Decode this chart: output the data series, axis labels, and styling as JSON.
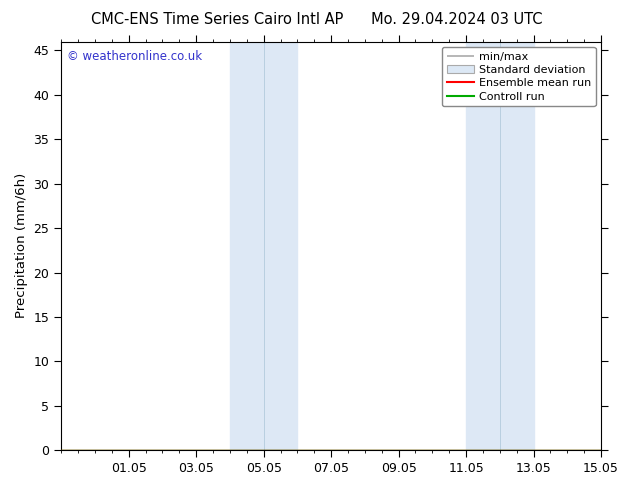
{
  "title": "CMC-ENS Time Series Cairo Intl AP      Mo. 29.04.2024 03 UTC",
  "ylabel": "Precipitation (mm/6h)",
  "xlim": [
    29.0,
    45.0
  ],
  "ylim": [
    0,
    46
  ],
  "yticks": [
    0,
    5,
    10,
    15,
    20,
    25,
    30,
    35,
    40,
    45
  ],
  "xtick_positions": [
    31,
    33,
    35,
    37,
    39,
    41,
    43,
    45
  ],
  "xtick_labels": [
    "01.05",
    "03.05",
    "05.05",
    "07.05",
    "09.05",
    "11.05",
    "13.05",
    "15.05"
  ],
  "minor_xtick_interval": 0.5,
  "shaded_regions": [
    [
      34.0,
      35.0
    ],
    [
      35.0,
      36.0
    ],
    [
      41.0,
      42.0
    ],
    [
      42.0,
      43.0
    ]
  ],
  "shade_colors": [
    "#dce8f5",
    "#dce8f5",
    "#dce8f5",
    "#dce8f5"
  ],
  "shade_border_color": "#b8d0e8",
  "watermark": "© weatheronline.co.uk",
  "watermark_color": "#3333cc",
  "legend_labels": [
    "min/max",
    "Standard deviation",
    "Ensemble mean run",
    "Controll run"
  ],
  "legend_line_color": "#aaaaaa",
  "legend_std_color": "#dce8f5",
  "legend_std_edge": "#aaaaaa",
  "legend_ens_color": "#ff0000",
  "legend_ctrl_color": "#00aa00",
  "background_color": "#ffffff",
  "title_fontsize": 10.5,
  "tick_fontsize": 9,
  "ylabel_fontsize": 9.5,
  "watermark_fontsize": 8.5,
  "legend_fontsize": 8
}
